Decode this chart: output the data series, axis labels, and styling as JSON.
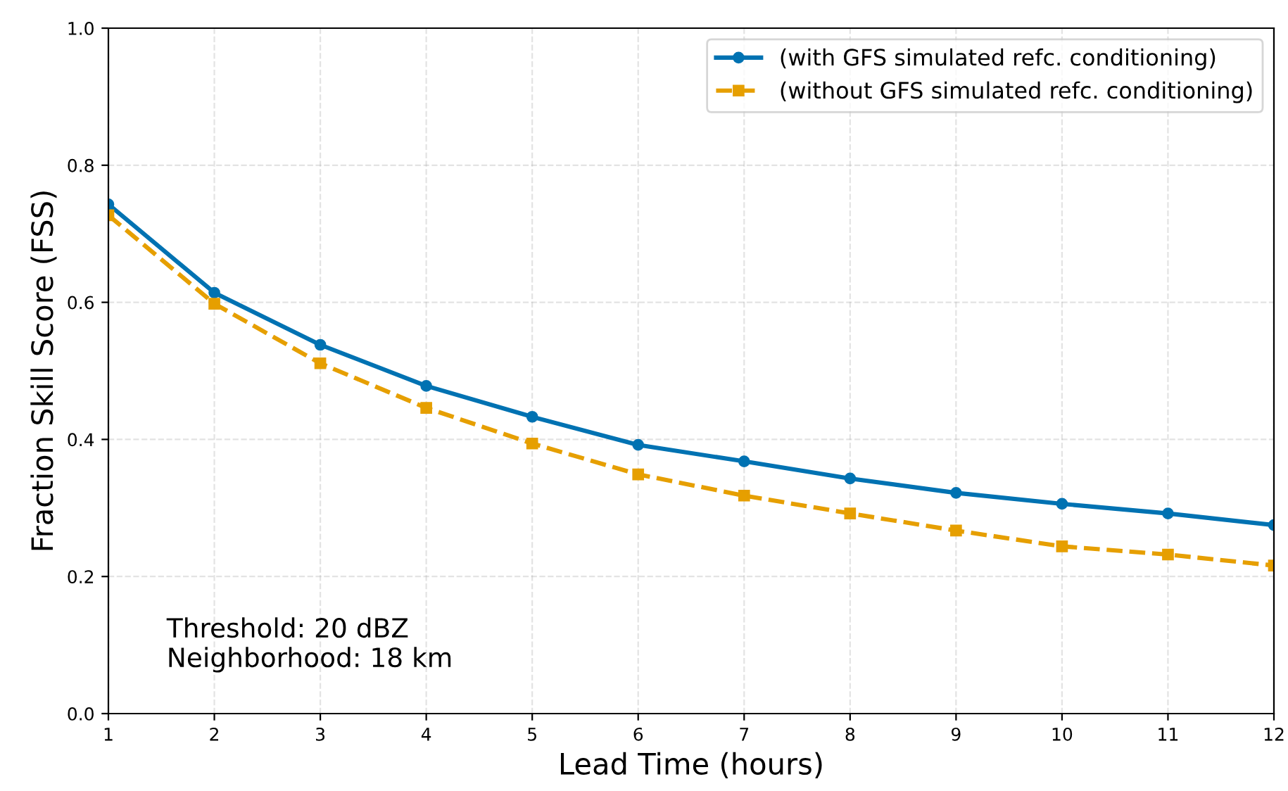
{
  "chart_data": {
    "type": "line",
    "xlabel": "Lead Time (hours)",
    "ylabel": "Fraction Skill Score (FSS)",
    "x": [
      1,
      2,
      3,
      4,
      5,
      6,
      7,
      8,
      9,
      10,
      11,
      12
    ],
    "xlim": [
      1,
      12
    ],
    "xticks": [
      1,
      2,
      3,
      4,
      5,
      6,
      7,
      8,
      9,
      10,
      11,
      12
    ],
    "ylim": [
      0.0,
      1.0
    ],
    "yticks": [
      {
        "value": 0.0,
        "label": "0.0"
      },
      {
        "value": 0.2,
        "label": "0.2"
      },
      {
        "value": 0.4,
        "label": "0.4"
      },
      {
        "value": 0.6,
        "label": "0.6"
      },
      {
        "value": 0.8,
        "label": "0.8"
      },
      {
        "value": 1.0,
        "label": "1.0"
      }
    ],
    "grid": true,
    "legend": "top right",
    "series": [
      {
        "name": "(with GFS simulated refc. conditioning)",
        "color": "#0072b2",
        "marker": "circle",
        "line_style": "solid",
        "values": [
          0.743,
          0.614,
          0.538,
          0.478,
          0.433,
          0.392,
          0.368,
          0.343,
          0.322,
          0.306,
          0.292,
          0.275
        ]
      },
      {
        "name": "(without GFS simulated refc. conditioning)",
        "color": "#e69f00",
        "marker": "square",
        "line_style": "dashed",
        "values": [
          0.727,
          0.598,
          0.511,
          0.446,
          0.394,
          0.349,
          0.318,
          0.292,
          0.267,
          0.244,
          0.232,
          0.216
        ]
      }
    ],
    "annotations": [
      "Threshold: 20 dBZ\nNeighborhood: 18 km"
    ]
  }
}
